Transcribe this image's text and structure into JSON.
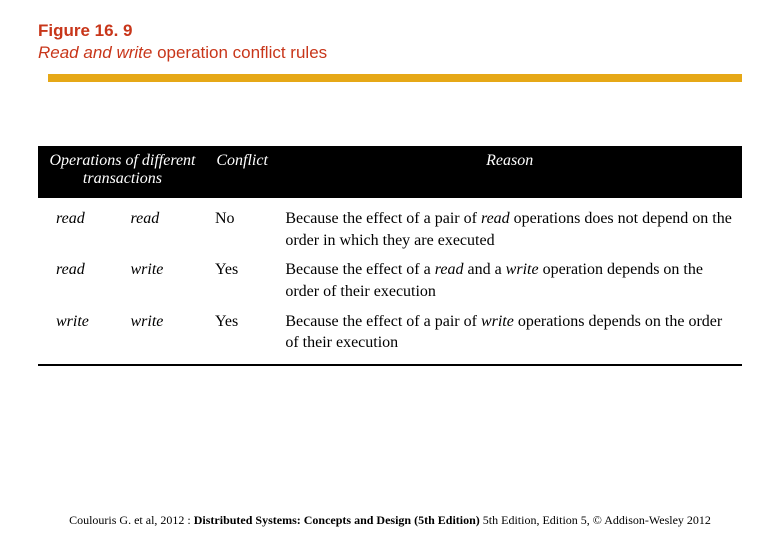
{
  "figure": {
    "number": "Figure 16. 9",
    "caption_italic": "Read and write",
    "caption_rest": " operation conflict rules"
  },
  "colors": {
    "title": "#c8361a",
    "gold_rule": "#e6a817",
    "header_bg": "#000000",
    "header_fg": "#ffffff",
    "text": "#000000"
  },
  "table": {
    "headers": {
      "operations": "Operations of different transactions",
      "conflict": "Conflict",
      "reason": "Reason"
    },
    "rows": [
      {
        "op1": "read",
        "op2": "read",
        "conflict": "No",
        "reason_pre": "Because the effect of a pair of ",
        "reason_em1": "read",
        "reason_mid": " operations does not depend on the order in which they are executed",
        "reason_em2": "",
        "reason_post": ""
      },
      {
        "op1": "read",
        "op2": "write",
        "conflict": "Yes",
        "reason_pre": "Because the effect of a ",
        "reason_em1": "read",
        "reason_mid": " and a ",
        "reason_em2": "write",
        "reason_post": " operation depends on the order of their execution"
      },
      {
        "op1": "write",
        "op2": "write",
        "conflict": "Yes",
        "reason_pre": "Because the effect of a pair of ",
        "reason_em1": "write",
        "reason_mid": " operations depends on the order of their execution",
        "reason_em2": "",
        "reason_post": ""
      }
    ]
  },
  "footer": {
    "pre": "Coulouris G. et al, 2012 : ",
    "bold": "Distributed Systems: Concepts and Design (5th Edition)",
    "post": " 5th Edition, Edition 5, © Addison-Wesley 2012"
  }
}
